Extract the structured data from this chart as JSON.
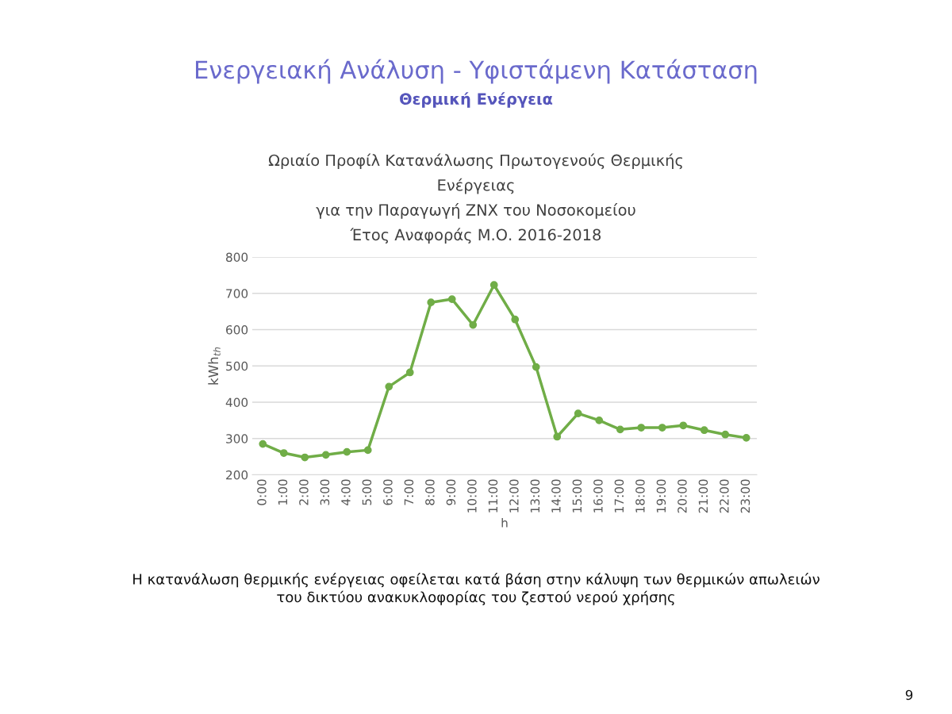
{
  "chart_data": {
    "type": "line",
    "title": "Ωριαίο Προφίλ Κατανάλωσης Πρωτογενούς Θερμικής\nΕνέργειας\nγια την Παραγωγή ΖΝΧ του Νοσοκομείου\nΈτος Αναφοράς Μ.Ο. 2016-2018",
    "xlabel": "h",
    "ylabel": "kWh$_{th}$",
    "categories": [
      "0:00",
      "1:00",
      "2:00",
      "3:00",
      "4:00",
      "5:00",
      "6:00",
      "7:00",
      "8:00",
      "9:00",
      "10:00",
      "11:00",
      "12:00",
      "13:00",
      "14:00",
      "15:00",
      "16:00",
      "17:00",
      "18:00",
      "19:00",
      "20:00",
      "21:00",
      "22:00",
      "23:00"
    ],
    "series": [
      {
        "color": "#70ad47",
        "values": [
          285,
          260,
          248,
          255,
          263,
          268,
          443,
          482,
          675,
          684,
          613,
          723,
          628,
          497,
          305,
          369,
          350,
          325,
          330,
          330,
          336,
          323,
          311,
          302
        ]
      }
    ],
    "ylim": [
      200,
      800
    ],
    "yticks": [
      200,
      300,
      400,
      500,
      600,
      700,
      800
    ],
    "grid": "y",
    "marker": "circle",
    "line_style": "solid",
    "legend": false,
    "annotations": [
      "Ενεργειακή Ανάλυση - Υφιστάμενη Κατάσταση",
      "Θερμική Ενέργεια",
      "Η κατανάλωση θερμικής ενέργειας οφείλεται κατά βάση στην κάλυψη των θερμικών απωλειών\nτου δικτύου ανακυκλοφορίας του ζεστού νερού χρήσης",
      "9"
    ]
  }
}
